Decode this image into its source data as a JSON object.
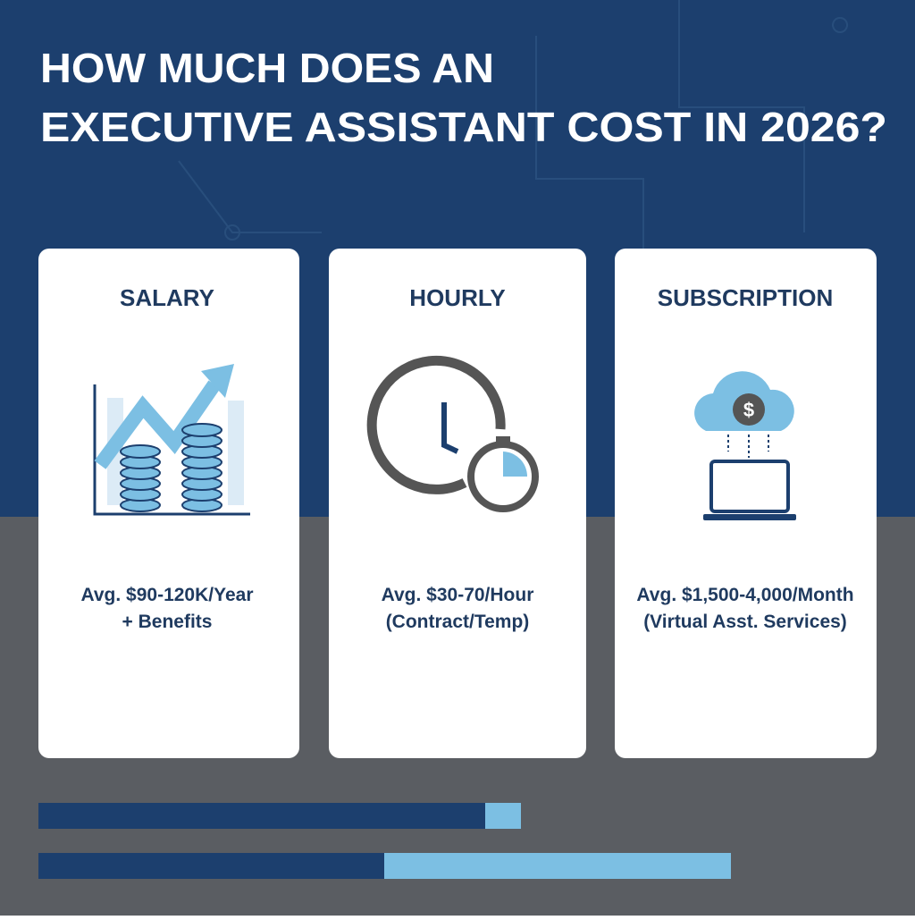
{
  "header": {
    "title": [
      "HOW MUCH DOES AN",
      "EXECUTIVE ASSISTANT COST IN 2026?"
    ]
  },
  "cards": [
    {
      "heading": "SALARY",
      "lines": [
        "Avg. $90-120K/Year",
        "+ Benefits"
      ]
    },
    {
      "heading": "HOURLY",
      "lines": [
        "Avg. $30-70/Hour",
        "(Contract/Temp)"
      ]
    },
    {
      "heading": "SUBSCRIPTION",
      "lines": [
        "Avg. $1,500-4,000/Month",
        "(Virtual Asst. Services)"
      ]
    }
  ]
}
